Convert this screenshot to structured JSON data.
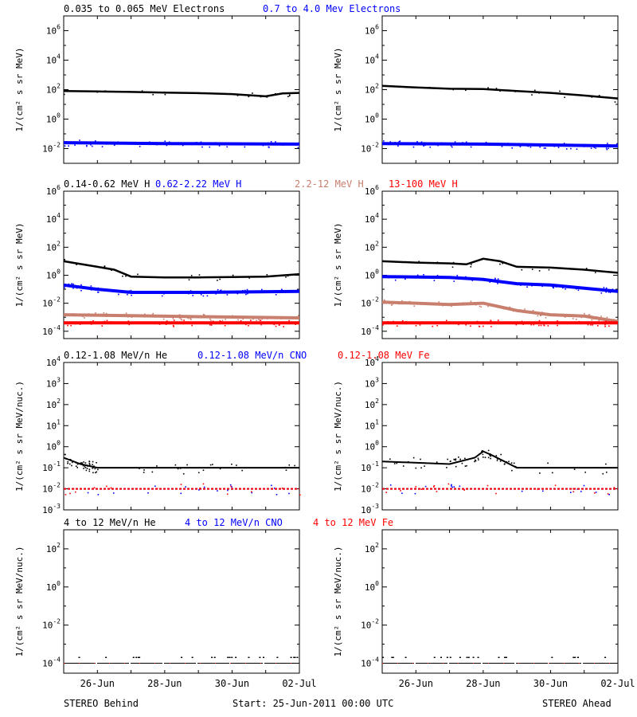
{
  "colors": {
    "black": "#000000",
    "blue": "#0000ff",
    "tan": "#c87f6e",
    "red": "#ff0000"
  },
  "footer": {
    "left": "STEREO Behind",
    "center": "Start: 25-Jun-2011 00:00 UTC",
    "right": "STEREO Ahead"
  },
  "chart_data": [
    {
      "type": "scatter",
      "scale": "log",
      "ylabel": "1/(cm² s sr MeV)",
      "xlim": [
        "2011-06-25",
        "2011-07-02"
      ],
      "xticks": [
        "26-Jun",
        "28-Jun",
        "30-Jun",
        "02-Jul"
      ],
      "x_tick_dates": [
        "2011-06-26",
        "2011-06-28",
        "2011-06-30",
        "2011-07-02"
      ],
      "ylim": [
        0.001,
        10000000
      ],
      "yticks": [
        0.01,
        1,
        100,
        10000,
        1000000
      ],
      "ytick_labels": [
        [
          "10",
          "-2"
        ],
        [
          "10",
          "0"
        ],
        [
          "10",
          "2"
        ],
        [
          "10",
          "4"
        ],
        [
          "10",
          "6"
        ]
      ],
      "panels": [
        {
          "side": "STEREO Behind",
          "series": [
            {
              "name": "0.035 to 0.065 MeV Electrons",
              "color": "black",
              "points": [
                [
                  "2011-06-25",
                  80
                ],
                [
                  "2011-06-26",
                  75
                ],
                [
                  "2011-06-27",
                  70
                ],
                [
                  "2011-06-28",
                  63
                ],
                [
                  "2011-06-29",
                  58
                ],
                [
                  "2011-06-30",
                  50
                ],
                [
                  "2011-07-01",
                  35
                ],
                [
                  "2011-07-01T12",
                  55
                ],
                [
                  "2011-07-02",
                  60
                ]
              ]
            },
            {
              "name": "0.7 to 4.0 Mev Electrons",
              "color": "blue",
              "points": [
                [
                  "2011-06-25",
                  0.025
                ],
                [
                  "2011-06-28",
                  0.022
                ],
                [
                  "2011-07-02",
                  0.02
                ]
              ]
            }
          ]
        },
        {
          "side": "STEREO Ahead",
          "series": [
            {
              "name": "0.035 to 0.065 MeV Electrons",
              "color": "black",
              "points": [
                [
                  "2011-06-25",
                  180
                ],
                [
                  "2011-06-26",
                  140
                ],
                [
                  "2011-06-27",
                  115
                ],
                [
                  "2011-06-28",
                  110
                ],
                [
                  "2011-06-29",
                  80
                ],
                [
                  "2011-06-30",
                  60
                ],
                [
                  "2011-07-01",
                  40
                ],
                [
                  "2011-07-02",
                  25
                ]
              ]
            },
            {
              "name": "0.7 to 4.0 Mev Electrons",
              "color": "blue",
              "points": [
                [
                  "2011-06-25",
                  0.022
                ],
                [
                  "2011-06-28",
                  0.02
                ],
                [
                  "2011-07-02",
                  0.015
                ]
              ]
            }
          ]
        }
      ]
    },
    {
      "type": "scatter",
      "scale": "log",
      "ylabel": "1/(cm² s sr MeV)",
      "xlim": [
        "2011-06-25",
        "2011-07-02"
      ],
      "xticks": [
        "26-Jun",
        "28-Jun",
        "30-Jun",
        "02-Jul"
      ],
      "x_tick_dates": [
        "2011-06-26",
        "2011-06-28",
        "2011-06-30",
        "2011-07-02"
      ],
      "ylim": [
        3e-05,
        1000000
      ],
      "yticks": [
        0.0001,
        0.01,
        1,
        100,
        10000,
        1000000
      ],
      "ytick_labels": [
        [
          "10",
          "-4"
        ],
        [
          "10",
          "-2"
        ],
        [
          "10",
          "0"
        ],
        [
          "10",
          "2"
        ],
        [
          "10",
          "4"
        ],
        [
          "10",
          "6"
        ]
      ],
      "panels": [
        {
          "side": "STEREO Behind",
          "series": [
            {
              "name": "0.14-0.62 MeV H",
              "color": "black",
              "points": [
                [
                  "2011-06-25",
                  10
                ],
                [
                  "2011-06-26",
                  4
                ],
                [
                  "2011-06-26T12",
                  2.5
                ],
                [
                  "2011-06-27",
                  0.8
                ],
                [
                  "2011-06-28",
                  0.7
                ],
                [
                  "2011-06-29",
                  0.7
                ],
                [
                  "2011-06-30",
                  0.75
                ],
                [
                  "2011-07-01",
                  0.8
                ],
                [
                  "2011-07-02",
                  1.2
                ]
              ]
            },
            {
              "name": "0.62-2.22 MeV H",
              "color": "blue",
              "points": [
                [
                  "2011-06-25",
                  0.2
                ],
                [
                  "2011-06-26",
                  0.1
                ],
                [
                  "2011-06-27",
                  0.06
                ],
                [
                  "2011-06-29",
                  0.06
                ],
                [
                  "2011-07-02",
                  0.07
                ]
              ]
            },
            {
              "name": "2.2-12 MeV H",
              "color": "tan",
              "points": [
                [
                  "2011-06-25",
                  0.0015
                ],
                [
                  "2011-06-27",
                  0.0013
                ],
                [
                  "2011-06-29",
                  0.0011
                ],
                [
                  "2011-07-02",
                  0.0009
                ]
              ]
            },
            {
              "name": "13-100 MeV H",
              "color": "red",
              "points": [
                [
                  "2011-06-25",
                  0.0004
                ],
                [
                  "2011-07-02",
                  0.0004
                ]
              ]
            }
          ]
        },
        {
          "side": "STEREO Ahead",
          "series": [
            {
              "name": "0.14-0.62 MeV H",
              "color": "black",
              "points": [
                [
                  "2011-06-25",
                  10
                ],
                [
                  "2011-06-26",
                  8
                ],
                [
                  "2011-06-27",
                  7
                ],
                [
                  "2011-06-27T12",
                  6
                ],
                [
                  "2011-06-28",
                  15
                ],
                [
                  "2011-06-28T12",
                  10
                ],
                [
                  "2011-06-29",
                  4
                ],
                [
                  "2011-06-30",
                  3.5
                ],
                [
                  "2011-07-01",
                  2.5
                ],
                [
                  "2011-07-02",
                  1.5
                ]
              ]
            },
            {
              "name": "0.62-2.22 MeV H",
              "color": "blue",
              "points": [
                [
                  "2011-06-25",
                  0.8
                ],
                [
                  "2011-06-27",
                  0.7
                ],
                [
                  "2011-06-28",
                  0.5
                ],
                [
                  "2011-06-29",
                  0.25
                ],
                [
                  "2011-06-30",
                  0.2
                ],
                [
                  "2011-07-01",
                  0.12
                ],
                [
                  "2011-07-02",
                  0.07
                ]
              ]
            },
            {
              "name": "2.2-12 MeV H",
              "color": "tan",
              "points": [
                [
                  "2011-06-25",
                  0.012
                ],
                [
                  "2011-06-26",
                  0.01
                ],
                [
                  "2011-06-27",
                  0.008
                ],
                [
                  "2011-06-28",
                  0.01
                ],
                [
                  "2011-06-29",
                  0.003
                ],
                [
                  "2011-06-30",
                  0.0015
                ],
                [
                  "2011-07-01",
                  0.0012
                ],
                [
                  "2011-07-02",
                  0.0005
                ]
              ]
            },
            {
              "name": "13-100 MeV H",
              "color": "red",
              "points": [
                [
                  "2011-06-25",
                  0.0004
                ],
                [
                  "2011-07-02",
                  0.0004
                ]
              ]
            }
          ]
        }
      ]
    },
    {
      "type": "scatter",
      "scale": "log",
      "ylabel": "1/(cm² s sr MeV/nuc.)",
      "xlim": [
        "2011-06-25",
        "2011-07-02"
      ],
      "xticks": [
        "26-Jun",
        "28-Jun",
        "30-Jun",
        "02-Jul"
      ],
      "x_tick_dates": [
        "2011-06-26",
        "2011-06-28",
        "2011-06-30",
        "2011-07-02"
      ],
      "ylim": [
        0.001,
        10000
      ],
      "yticks": [
        0.001,
        0.01,
        0.1,
        1,
        10,
        100,
        1000,
        10000
      ],
      "ytick_labels": [
        [
          "10",
          "-3"
        ],
        [
          "10",
          "-2"
        ],
        [
          "10",
          "-1"
        ],
        [
          "10",
          "0"
        ],
        [
          "10",
          "1"
        ],
        [
          "10",
          "2"
        ],
        [
          "10",
          "3"
        ],
        [
          "10",
          "4"
        ]
      ],
      "panels": [
        {
          "side": "STEREO Behind",
          "series": [
            {
              "name": "0.12-1.08 MeV/n He",
              "color": "black",
              "points": [
                [
                  "2011-06-25",
                  0.3
                ],
                [
                  "2011-06-25T12",
                  0.15
                ],
                [
                  "2011-06-26",
                  0.1
                ],
                [
                  "2011-07-02",
                  0.1
                ]
              ]
            },
            {
              "name": "0.12-1.08 MeV/n CNO",
              "color": "blue",
              "points": [
                [
                  "2011-06-25",
                  0.01
                ],
                [
                  "2011-07-02",
                  0.01
                ]
              ]
            },
            {
              "name": "0.12-1.08 MeV Fe",
              "color": "red",
              "points": [
                [
                  "2011-06-25",
                  0.01
                ],
                [
                  "2011-07-02",
                  0.01
                ]
              ]
            }
          ]
        },
        {
          "side": "STEREO Ahead",
          "series": [
            {
              "name": "0.12-1.08 MeV/n He",
              "color": "black",
              "points": [
                [
                  "2011-06-25",
                  0.2
                ],
                [
                  "2011-06-27",
                  0.15
                ],
                [
                  "2011-06-27T18",
                  0.3
                ],
                [
                  "2011-06-28",
                  0.6
                ],
                [
                  "2011-06-28T06",
                  0.4
                ],
                [
                  "2011-06-29",
                  0.1
                ],
                [
                  "2011-07-02",
                  0.1
                ]
              ]
            },
            {
              "name": "0.12-1.08 MeV/n CNO",
              "color": "blue",
              "points": [
                [
                  "2011-06-25",
                  0.01
                ],
                [
                  "2011-07-02",
                  0.01
                ]
              ]
            },
            {
              "name": "0.12-1.08 MeV Fe",
              "color": "red",
              "points": [
                [
                  "2011-06-25",
                  0.01
                ],
                [
                  "2011-07-02",
                  0.01
                ]
              ]
            }
          ]
        }
      ]
    },
    {
      "type": "scatter",
      "scale": "log",
      "ylabel": "1/(cm² s sr MeV/nuc.)",
      "xlim": [
        "2011-06-25",
        "2011-07-02"
      ],
      "xticks": [
        "26-Jun",
        "28-Jun",
        "30-Jun",
        "02-Jul"
      ],
      "x_tick_dates": [
        "2011-06-26",
        "2011-06-28",
        "2011-06-30",
        "2011-07-02"
      ],
      "ylim": [
        3e-05,
        1000
      ],
      "yticks": [
        0.0001,
        0.01,
        1,
        100
      ],
      "ytick_labels": [
        [
          "10",
          "-4"
        ],
        [
          "10",
          "-2"
        ],
        [
          "10",
          "0"
        ],
        [
          "10",
          "2"
        ]
      ],
      "panels": [
        {
          "side": "STEREO Behind",
          "series": [
            {
              "name": "4 to 12 MeV/n He",
              "color": "black",
              "points": [
                [
                  "2011-06-25",
                  0.0001
                ],
                [
                  "2011-07-02",
                  0.0001
                ]
              ]
            },
            {
              "name": "4 to 12 MeV/n CNO",
              "color": "blue",
              "points": [
                [
                  "2011-06-25",
                  0.0001
                ],
                [
                  "2011-07-02",
                  0.0001
                ]
              ]
            },
            {
              "name": "4 to 12 MeV Fe",
              "color": "red",
              "points": [
                [
                  "2011-06-25",
                  0.0001
                ],
                [
                  "2011-07-02",
                  0.0001
                ]
              ]
            }
          ]
        },
        {
          "side": "STEREO Ahead",
          "series": [
            {
              "name": "4 to 12 MeV/n He",
              "color": "black",
              "points": [
                [
                  "2011-06-25",
                  0.0001
                ],
                [
                  "2011-07-02",
                  0.0001
                ]
              ]
            },
            {
              "name": "4 to 12 MeV/n CNO",
              "color": "blue",
              "points": [
                [
                  "2011-06-25",
                  0.0001
                ],
                [
                  "2011-07-02",
                  0.0001
                ]
              ]
            },
            {
              "name": "4 to 12 MeV Fe",
              "color": "red",
              "points": [
                [
                  "2011-06-25",
                  0.0001
                ],
                [
                  "2011-07-02",
                  0.0001
                ]
              ]
            }
          ]
        }
      ]
    }
  ]
}
